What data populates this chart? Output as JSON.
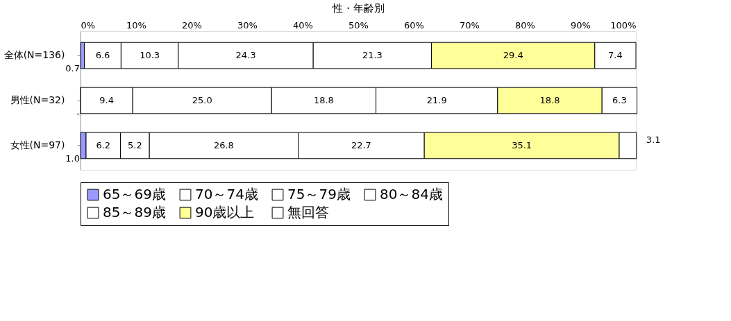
{
  "chart_data": {
    "type": "bar",
    "orientation": "horizontal",
    "stacked": true,
    "title": "性・年齢別",
    "categories": [
      "全体(N=136)",
      "男性(N=32)",
      "女性(N=97)"
    ],
    "series": [
      {
        "name": "65～69歳",
        "color": "#9999ff",
        "values": [
          0.7,
          0,
          1.0
        ],
        "value_labels": [
          "0.7",
          null,
          "1.0"
        ]
      },
      {
        "name": "70～74歳",
        "color": "#ffffff",
        "values": [
          6.6,
          9.4,
          6.2
        ],
        "value_labels": [
          "6.6",
          "9.4",
          "6.2"
        ]
      },
      {
        "name": "75～79歳",
        "color": "#ffffff",
        "values": [
          10.3,
          25.0,
          5.2
        ],
        "value_labels": [
          "10.3",
          "25.0",
          "5.2"
        ]
      },
      {
        "name": "80～84歳",
        "color": "#ffffff",
        "values": [
          24.3,
          18.8,
          26.8
        ],
        "value_labels": [
          "24.3",
          "18.8",
          "26.8"
        ]
      },
      {
        "name": "85～89歳",
        "color": "#ffffff",
        "values": [
          21.3,
          21.9,
          22.7
        ],
        "value_labels": [
          "21.3",
          "21.9",
          "22.7"
        ]
      },
      {
        "name": "90歳以上",
        "color": "#ffff99",
        "values": [
          29.4,
          18.8,
          35.1
        ],
        "value_labels": [
          "29.4",
          "18.8",
          "35.1"
        ]
      },
      {
        "name": "無回答",
        "color": "#ffffff",
        "values": [
          7.4,
          6.3,
          3.1
        ],
        "value_labels": [
          "7.4",
          "6.3",
          "3.1"
        ]
      }
    ],
    "xlim": [
      0,
      100
    ],
    "xticks": [
      {
        "value": 0,
        "label": "0%"
      },
      {
        "value": 10,
        "label": "10%"
      },
      {
        "value": 20,
        "label": "20%"
      },
      {
        "value": 30,
        "label": "30%"
      },
      {
        "value": 40,
        "label": "40%"
      },
      {
        "value": 50,
        "label": "50%"
      },
      {
        "value": 60,
        "label": "60%"
      },
      {
        "value": 70,
        "label": "70%"
      },
      {
        "value": 80,
        "label": "80%"
      },
      {
        "value": 90,
        "label": "90%"
      },
      {
        "value": 100,
        "label": "100%"
      }
    ],
    "annotations": [
      {
        "text": "-",
        "x": 0,
        "y": "男性(N=32)"
      }
    ],
    "grid": false,
    "legend": "bottom"
  }
}
